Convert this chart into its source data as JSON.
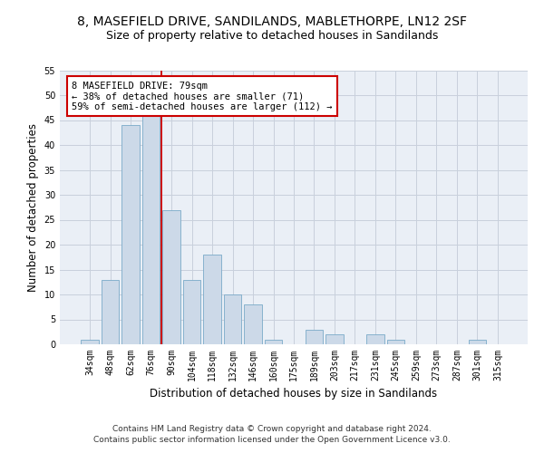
{
  "title": "8, MASEFIELD DRIVE, SANDILANDS, MABLETHORPE, LN12 2SF",
  "subtitle": "Size of property relative to detached houses in Sandilands",
  "xlabel": "Distribution of detached houses by size in Sandilands",
  "ylabel": "Number of detached properties",
  "categories": [
    "34sqm",
    "48sqm",
    "62sqm",
    "76sqm",
    "90sqm",
    "104sqm",
    "118sqm",
    "132sqm",
    "146sqm",
    "160sqm",
    "175sqm",
    "189sqm",
    "203sqm",
    "217sqm",
    "231sqm",
    "245sqm",
    "259sqm",
    "273sqm",
    "287sqm",
    "301sqm",
    "315sqm"
  ],
  "values": [
    1,
    13,
    44,
    46,
    27,
    13,
    18,
    10,
    8,
    1,
    0,
    3,
    2,
    0,
    2,
    1,
    0,
    0,
    0,
    1,
    0
  ],
  "bar_color": "#ccd9e8",
  "bar_edge_color": "#7aaac8",
  "grid_color": "#c8d0dc",
  "background_color": "#eaeff6",
  "annotation_text_line1": "8 MASEFIELD DRIVE: 79sqm",
  "annotation_text_line2": "← 38% of detached houses are smaller (71)",
  "annotation_text_line3": "59% of semi-detached houses are larger (112) →",
  "annotation_box_color": "#ffffff",
  "annotation_border_color": "#cc0000",
  "red_line_color": "#cc0000",
  "ylim": [
    0,
    55
  ],
  "yticks": [
    0,
    5,
    10,
    15,
    20,
    25,
    30,
    35,
    40,
    45,
    50,
    55
  ],
  "footer_line1": "Contains HM Land Registry data © Crown copyright and database right 2024.",
  "footer_line2": "Contains public sector information licensed under the Open Government Licence v3.0.",
  "title_fontsize": 10,
  "subtitle_fontsize": 9,
  "tick_fontsize": 7,
  "ylabel_fontsize": 8.5,
  "xlabel_fontsize": 8.5,
  "annotation_fontsize": 7.5,
  "footer_fontsize": 6.5
}
